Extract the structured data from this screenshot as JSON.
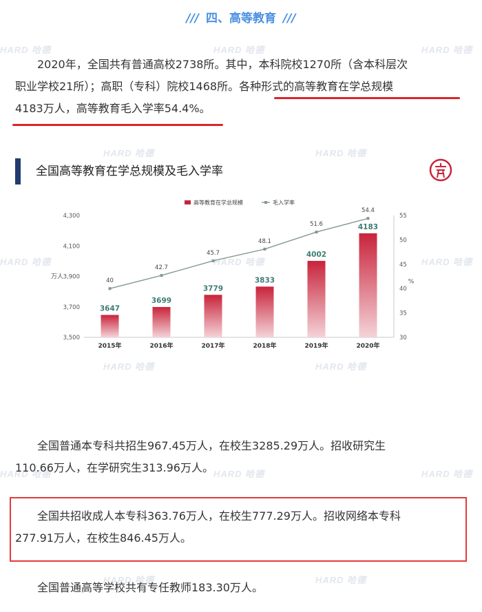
{
  "watermark": "HARD 哈德",
  "section_title": "四、高等教育",
  "section_title_deco": "///",
  "para1": "2020年，全国共有普通高校2738所。其中，本科院校1270所（含本科层次职业学校21所）；高职（专科）院校1468所。各种形式的高等教育在学总规模4183万人，高等教育毛入学率54.4%。",
  "para1_lines": [
    "2020年，全国共有普通高校2738所。其中，本科院校1270所（含本科层次",
    "职业学校21所）；高职（专科）院校1468所。各种形式的高等教育在学总规模",
    "4183万人，高等教育毛入学率54.4%。"
  ],
  "chart_heading": "全国高等教育在学总规模及毛入学率",
  "colors": {
    "bar_top": "#c8243b",
    "bar_bottom": "#f4d3d8",
    "line": "#7f9a91",
    "highlight": "#d9252b",
    "title_blue": "#4a90e2",
    "heading_bar": "#223b6e"
  },
  "chart_data": {
    "type": "bar",
    "categories": [
      "2015年",
      "2016年",
      "2017年",
      "2018年",
      "2019年",
      "2020年"
    ],
    "series": [
      {
        "name": "高等教育在学总规模",
        "type": "bar",
        "axis": "left",
        "values": [
          3647,
          3699,
          3779,
          3833,
          4002,
          4183
        ]
      },
      {
        "name": "毛入学率",
        "type": "line",
        "axis": "right",
        "values": [
          40,
          42.7,
          45.7,
          48.1,
          51.6,
          54.4
        ]
      }
    ],
    "ylabel": "万人",
    "ylabel_right": "%",
    "ylim": [
      3500,
      4300
    ],
    "yticks": [
      "3,500",
      "3,700",
      "3,900",
      "4,100",
      "4,300"
    ],
    "yticks_values": [
      3500,
      3700,
      3900,
      4100,
      4300
    ],
    "ylim_right": [
      30,
      55
    ],
    "yticks_right": [
      "30",
      "35",
      "40",
      "45",
      "50",
      "55"
    ],
    "grid": false,
    "legend_position": "top-right"
  },
  "para2_lines": [
    "全国普通本专科共招生967.45万人，在校生3285.29万人。招收研究生",
    "110.66万人，在学研究生313.96万人。"
  ],
  "para3_lines": [
    "全国共招收成人本专科363.76万人，在校生777.29万人。招收网络本专科",
    "277.91万人，在校生846.45万人。"
  ],
  "para4": "全国普通高等学校共有专任教师183.30万人。"
}
